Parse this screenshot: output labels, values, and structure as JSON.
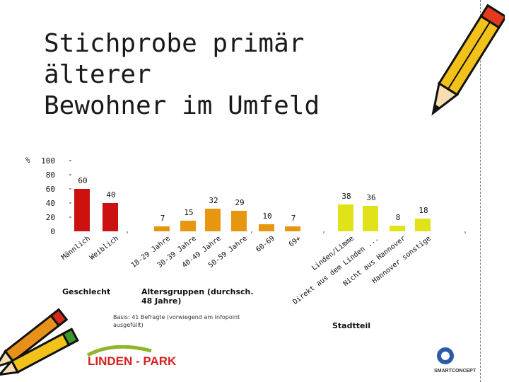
{
  "slide": {
    "title_line1": "Stichprobe primär älterer",
    "title_line2": "Bewohner im Umfeld",
    "basis_note": "Basis: 41 Befragte (vorwiegend am Infopoint ausgefüllt)",
    "logo_left_text": "LINDEN - PARK",
    "logo_right_text": "SMARTCONCEPT"
  },
  "chart_data": {
    "type": "bar",
    "ylabel": "%",
    "ylim": [
      0,
      100
    ],
    "yticks": [
      0,
      20,
      40,
      60,
      80,
      100
    ],
    "grid": false,
    "bar_colors": {
      "geschlecht": "#cc1111",
      "alter": "#e8960f",
      "stadtteil": "#e0e21a"
    },
    "groups": [
      {
        "label": "Geschlecht",
        "color_key": "geschlecht",
        "categories": [
          "Männlich",
          "Weiblich"
        ],
        "values": [
          60,
          40
        ]
      },
      {
        "label": "Altersgruppen (durchsch. 48 Jahre)",
        "color_key": "alter",
        "categories": [
          "18-29 Jahre",
          "30-39 Jahre",
          "40-49 Jahre",
          "50-59 Jahre",
          "60-69",
          "69+"
        ],
        "values": [
          7,
          15,
          32,
          29,
          10,
          7
        ]
      },
      {
        "label": "Stadtteil",
        "color_key": "stadtteil",
        "categories": [
          "Linden/Limme",
          "Direkt aus dem Linden ...",
          "Nicht aus Hannover",
          "Hannover sonstige"
        ],
        "values": [
          38,
          36,
          8,
          18
        ]
      }
    ]
  }
}
